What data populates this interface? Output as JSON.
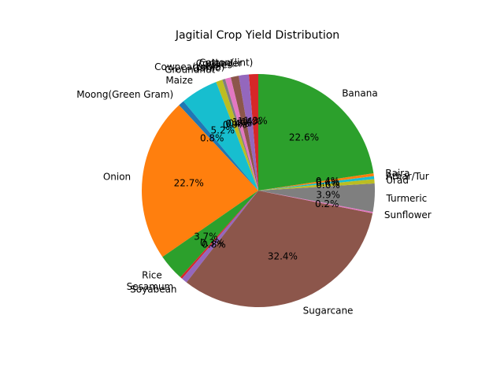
{
  "chart_data": {
    "type": "pie",
    "title": "Jagitial Crop Yield Distribution",
    "start_angle_deg": 90,
    "direction": "counterclockwise",
    "slices": [
      {
        "label": "Cotton(lint)",
        "value": 1.3,
        "pct_label": "1.3%",
        "color": "#d62728"
      },
      {
        "label": "Coriander",
        "value": 1.4,
        "pct_label": "1.4%",
        "color": "#9467bd"
      },
      {
        "label": "Chillies",
        "value": 1.1,
        "pct_label": "1.1%",
        "color": "#8c564b"
      },
      {
        "label": "Cowpea(Lobia)",
        "value": 0.8,
        "pct_label": "0.8%",
        "color": "#e377c2"
      },
      {
        "label": "Garlic",
        "value": 0.4,
        "pct_label": "0.4%",
        "color": "#7f7f7f"
      },
      {
        "label": "Groundnut",
        "value": 0.9,
        "pct_label": "0.9%",
        "color": "#bcbd22"
      },
      {
        "label": "Maize",
        "value": 5.2,
        "pct_label": "5.2%",
        "color": "#17becf"
      },
      {
        "label": "Moong(Green Gram)",
        "value": 0.8,
        "pct_label": "0.8%",
        "color": "#1f77b4"
      },
      {
        "label": "Onion",
        "value": 22.7,
        "pct_label": "22.7%",
        "color": "#ff7f0e"
      },
      {
        "label": "Rice",
        "value": 3.7,
        "pct_label": "3.7%",
        "color": "#2ca02c"
      },
      {
        "label": "Sesamum",
        "value": 0.3,
        "pct_label": "0.3%",
        "color": "#d62728"
      },
      {
        "label": "Soyabean",
        "value": 0.8,
        "pct_label": "0.8%",
        "color": "#9467bd"
      },
      {
        "label": "Sugarcane",
        "value": 32.4,
        "pct_label": "32.4%",
        "color": "#8c564b"
      },
      {
        "label": "Sunflower",
        "value": 0.2,
        "pct_label": "0.2%",
        "color": "#e377c2"
      },
      {
        "label": "Turmeric",
        "value": 3.9,
        "pct_label": "3.9%",
        "color": "#7f7f7f"
      },
      {
        "label": "Urad",
        "value": 0.6,
        "pct_label": "0.6%",
        "color": "#bcbd22"
      },
      {
        "label": "Arhar/Tur",
        "value": 0.4,
        "pct_label": "0.4%",
        "color": "#17becf"
      },
      {
        "label": "Bajra",
        "value": 0.4,
        "pct_label": "0.4%",
        "color": "#ff7f0e"
      },
      {
        "label": "Banana",
        "value": 22.6,
        "pct_label": "22.6%",
        "color": "#2ca02c"
      }
    ]
  }
}
